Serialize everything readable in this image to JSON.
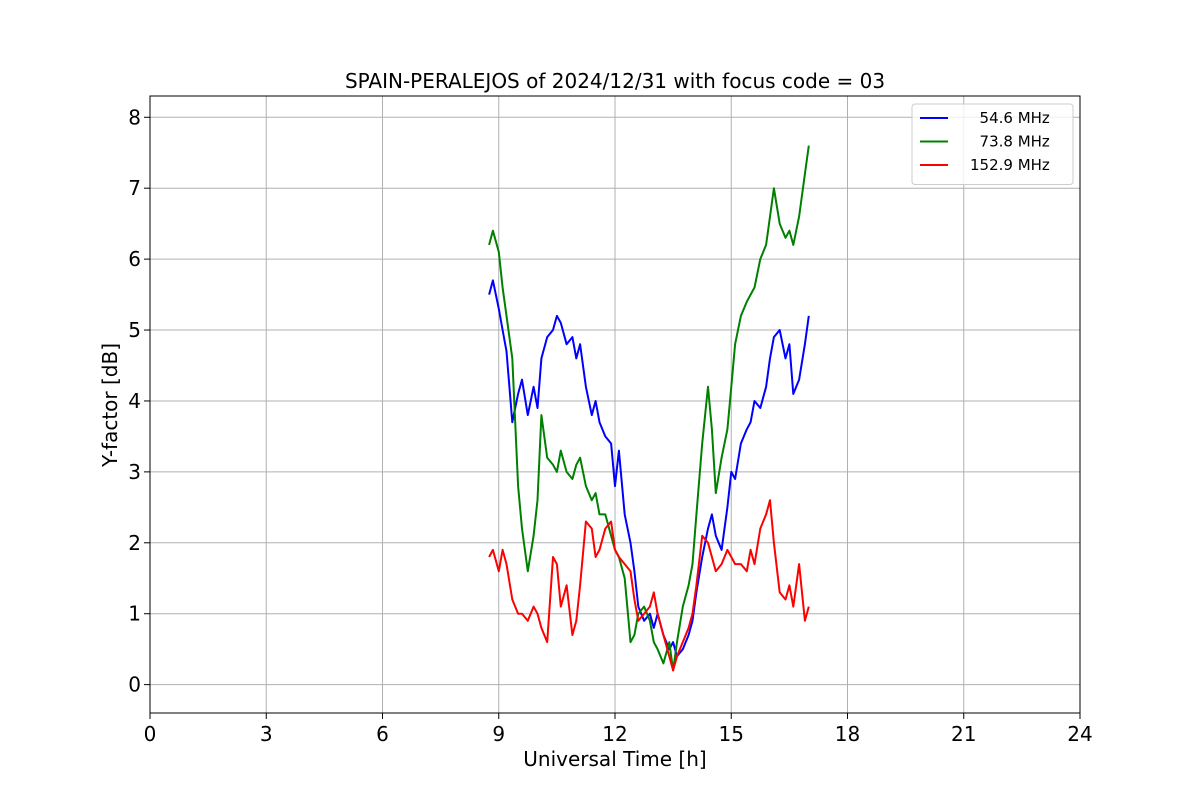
{
  "chart_data": {
    "type": "line",
    "title": "SPAIN-PERALEJOS of 2024/12/31 with focus code = 03",
    "xlabel": "Universal Time [h]",
    "ylabel": "Y-factor [dB]",
    "xlim": [
      0,
      24
    ],
    "ylim": [
      -0.4,
      8.3
    ],
    "xticks": [
      0,
      3,
      6,
      9,
      12,
      15,
      18,
      21,
      24
    ],
    "yticks": [
      0,
      1,
      2,
      3,
      4,
      5,
      6,
      7,
      8
    ],
    "grid": true,
    "legend_position": "top-right",
    "series": [
      {
        "name": "  54.6 MHz",
        "color": "#0000ff",
        "x": [
          8.75,
          8.85,
          9.0,
          9.1,
          9.2,
          9.35,
          9.5,
          9.6,
          9.75,
          9.9,
          10.0,
          10.1,
          10.25,
          10.4,
          10.5,
          10.6,
          10.75,
          10.9,
          11.0,
          11.1,
          11.25,
          11.4,
          11.5,
          11.6,
          11.75,
          11.9,
          12.0,
          12.1,
          12.25,
          12.4,
          12.5,
          12.6,
          12.75,
          12.9,
          13.0,
          13.1,
          13.25,
          13.4,
          13.5,
          13.6,
          13.75,
          13.9,
          14.0,
          14.1,
          14.25,
          14.4,
          14.5,
          14.6,
          14.75,
          14.9,
          15.0,
          15.1,
          15.25,
          15.4,
          15.5,
          15.6,
          15.75,
          15.9,
          16.0,
          16.1,
          16.25,
          16.4,
          16.5,
          16.6,
          16.75,
          16.9,
          17.0
        ],
        "y": [
          5.5,
          5.7,
          5.3,
          5.0,
          4.7,
          3.7,
          4.1,
          4.3,
          3.8,
          4.2,
          3.9,
          4.6,
          4.9,
          5.0,
          5.2,
          5.1,
          4.8,
          4.9,
          4.6,
          4.8,
          4.2,
          3.8,
          4.0,
          3.7,
          3.5,
          3.4,
          2.8,
          3.3,
          2.4,
          2.0,
          1.6,
          1.1,
          0.9,
          1.0,
          0.8,
          1.0,
          0.7,
          0.5,
          0.6,
          0.4,
          0.5,
          0.7,
          0.9,
          1.3,
          1.8,
          2.2,
          2.4,
          2.1,
          1.9,
          2.5,
          3.0,
          2.9,
          3.4,
          3.6,
          3.7,
          4.0,
          3.9,
          4.2,
          4.6,
          4.9,
          5.0,
          4.6,
          4.8,
          4.1,
          4.3,
          4.8,
          5.2
        ]
      },
      {
        "name": "  73.8 MHz",
        "color": "#008000",
        "x": [
          8.75,
          8.85,
          9.0,
          9.1,
          9.2,
          9.35,
          9.5,
          9.6,
          9.75,
          9.9,
          10.0,
          10.1,
          10.25,
          10.4,
          10.5,
          10.6,
          10.75,
          10.9,
          11.0,
          11.1,
          11.25,
          11.4,
          11.5,
          11.6,
          11.75,
          11.9,
          12.0,
          12.1,
          12.25,
          12.4,
          12.5,
          12.6,
          12.75,
          12.9,
          13.0,
          13.1,
          13.25,
          13.4,
          13.5,
          13.6,
          13.75,
          13.9,
          14.0,
          14.1,
          14.25,
          14.4,
          14.5,
          14.6,
          14.75,
          14.9,
          15.0,
          15.1,
          15.25,
          15.4,
          15.5,
          15.6,
          15.75,
          15.9,
          16.0,
          16.1,
          16.25,
          16.4,
          16.5,
          16.6,
          16.75,
          16.9,
          17.0
        ],
        "y": [
          6.2,
          6.4,
          6.1,
          5.6,
          5.2,
          4.6,
          2.8,
          2.2,
          1.6,
          2.1,
          2.6,
          3.8,
          3.2,
          3.1,
          3.0,
          3.3,
          3.0,
          2.9,
          3.1,
          3.2,
          2.8,
          2.6,
          2.7,
          2.4,
          2.4,
          2.1,
          1.9,
          1.8,
          1.5,
          0.6,
          0.7,
          1.0,
          1.1,
          0.9,
          0.6,
          0.5,
          0.3,
          0.6,
          0.2,
          0.6,
          1.1,
          1.4,
          1.7,
          2.4,
          3.4,
          4.2,
          3.6,
          2.7,
          3.2,
          3.6,
          4.2,
          4.8,
          5.2,
          5.4,
          5.5,
          5.6,
          6.0,
          6.2,
          6.6,
          7.0,
          6.5,
          6.3,
          6.4,
          6.2,
          6.6,
          7.2,
          7.6
        ]
      },
      {
        "name": "152.9 MHz",
        "color": "#ff0000",
        "x": [
          8.75,
          8.85,
          9.0,
          9.1,
          9.2,
          9.35,
          9.5,
          9.6,
          9.75,
          9.9,
          10.0,
          10.1,
          10.25,
          10.4,
          10.5,
          10.6,
          10.75,
          10.9,
          11.0,
          11.1,
          11.25,
          11.4,
          11.5,
          11.6,
          11.75,
          11.9,
          12.0,
          12.1,
          12.25,
          12.4,
          12.5,
          12.6,
          12.75,
          12.9,
          13.0,
          13.1,
          13.25,
          13.4,
          13.5,
          13.6,
          13.75,
          13.9,
          14.0,
          14.1,
          14.25,
          14.4,
          14.5,
          14.6,
          14.75,
          14.9,
          15.0,
          15.1,
          15.25,
          15.4,
          15.5,
          15.6,
          15.75,
          15.9,
          16.0,
          16.1,
          16.25,
          16.4,
          16.5,
          16.6,
          16.75,
          16.9,
          17.0
        ],
        "y": [
          1.8,
          1.9,
          1.6,
          1.9,
          1.7,
          1.2,
          1.0,
          1.0,
          0.9,
          1.1,
          1.0,
          0.8,
          0.6,
          1.8,
          1.7,
          1.1,
          1.4,
          0.7,
          0.9,
          1.4,
          2.3,
          2.2,
          1.8,
          1.9,
          2.2,
          2.3,
          1.9,
          1.8,
          1.7,
          1.6,
          1.2,
          0.9,
          1.0,
          1.1,
          1.3,
          1.0,
          0.7,
          0.4,
          0.2,
          0.4,
          0.6,
          0.8,
          1.0,
          1.4,
          2.1,
          2.0,
          1.8,
          1.6,
          1.7,
          1.9,
          1.8,
          1.7,
          1.7,
          1.6,
          1.9,
          1.7,
          2.2,
          2.4,
          2.6,
          2.0,
          1.3,
          1.2,
          1.4,
          1.1,
          1.7,
          0.9,
          1.1
        ]
      }
    ]
  }
}
